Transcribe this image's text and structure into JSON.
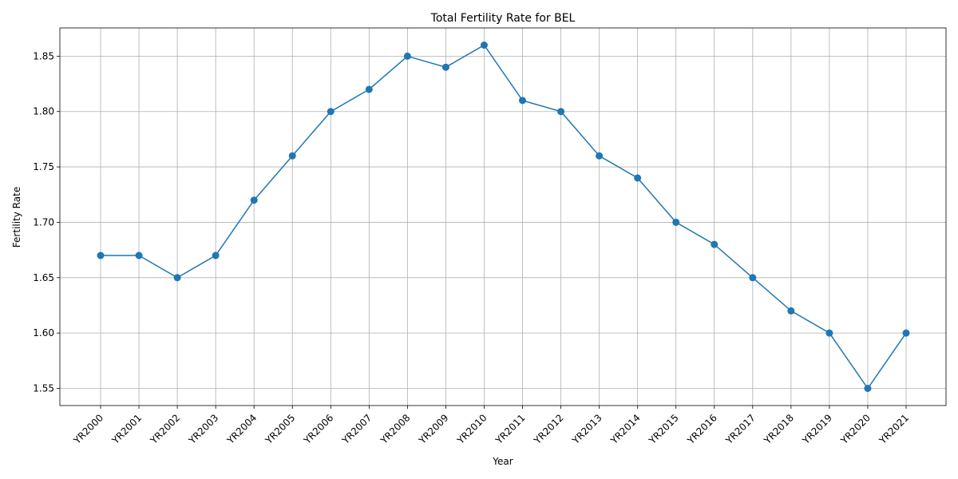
{
  "chart_data": {
    "type": "line",
    "title": "Total Fertility Rate for BEL",
    "xlabel": "Year",
    "ylabel": "Fertility Rate",
    "categories": [
      "YR2000",
      "YR2001",
      "YR2002",
      "YR2003",
      "YR2004",
      "YR2005",
      "YR2006",
      "YR2007",
      "YR2008",
      "YR2009",
      "YR2010",
      "YR2011",
      "YR2012",
      "YR2013",
      "YR2014",
      "YR2015",
      "YR2016",
      "YR2017",
      "YR2018",
      "YR2019",
      "YR2020",
      "YR2021"
    ],
    "values": [
      1.67,
      1.67,
      1.65,
      1.67,
      1.72,
      1.76,
      1.8,
      1.82,
      1.85,
      1.84,
      1.86,
      1.81,
      1.8,
      1.76,
      1.74,
      1.7,
      1.68,
      1.65,
      1.62,
      1.6,
      1.55,
      1.6
    ],
    "yticks": [
      "1.55",
      "1.60",
      "1.65",
      "1.70",
      "1.75",
      "1.80",
      "1.85"
    ],
    "ylim": [
      1.5345,
      1.8755
    ],
    "grid": true,
    "color": "#1f77b4"
  }
}
